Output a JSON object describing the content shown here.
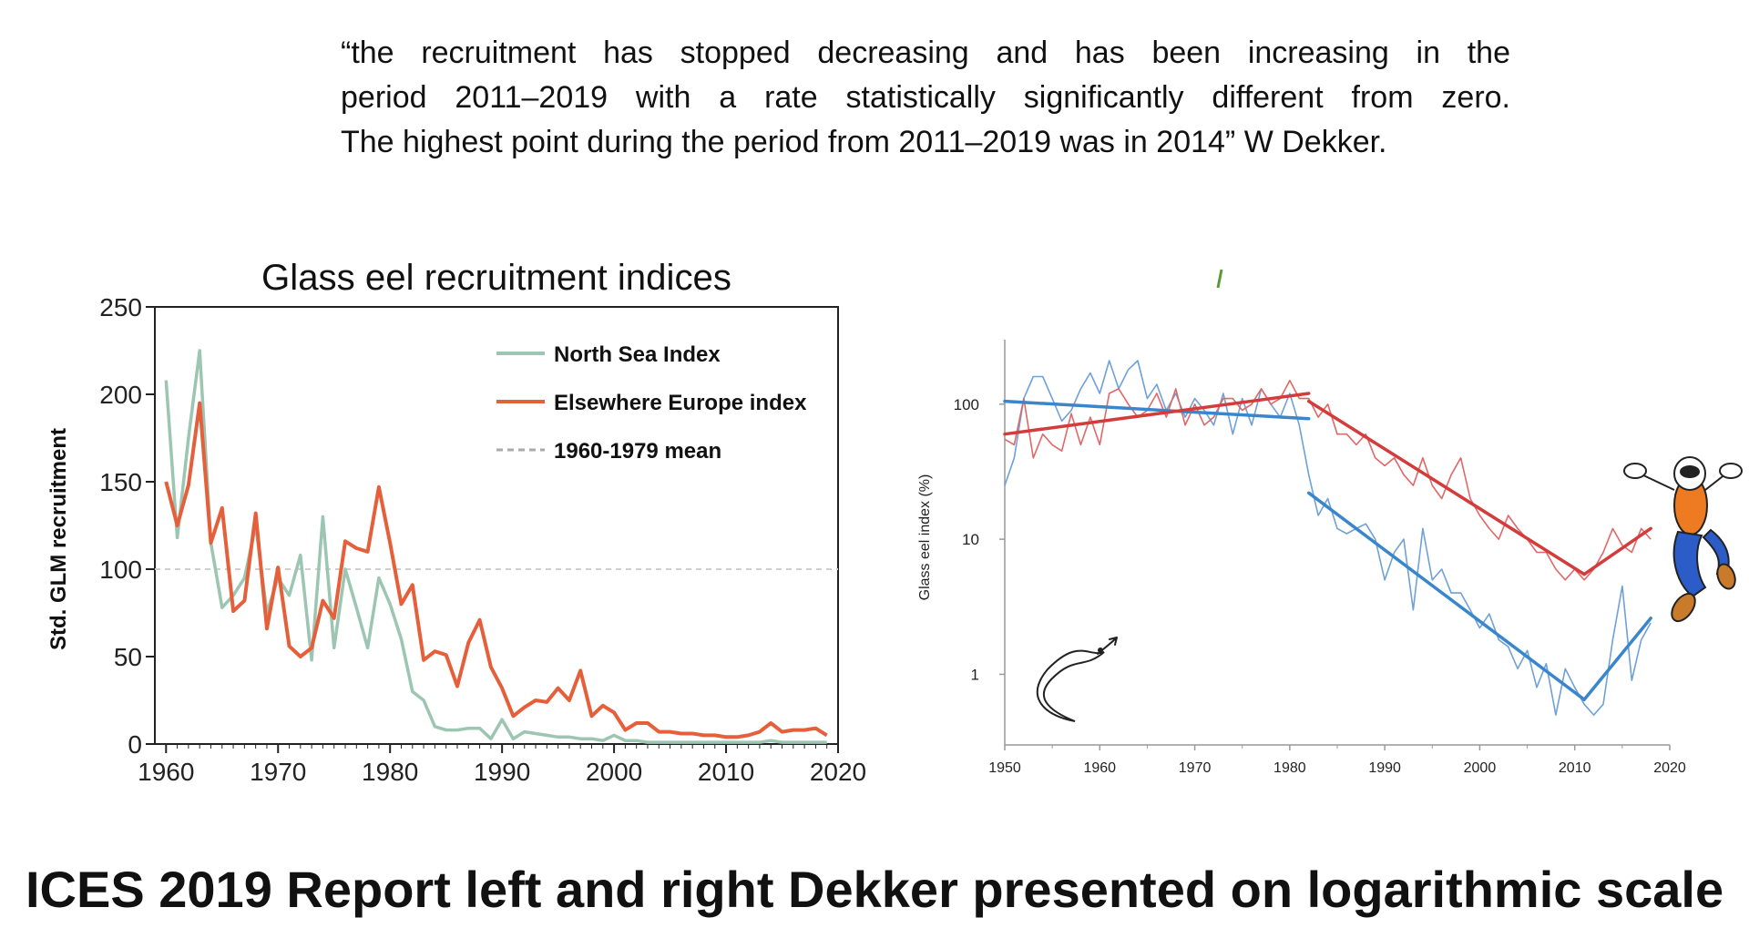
{
  "quote": {
    "lines": [
      "“the recruitment has stopped decreasing and has been increasing in the",
      "period 2011–2019 with a rate statistically significantly different from zero.",
      "The highest point during the period from 2011–2019 was in 2014” W Dekker."
    ]
  },
  "footer": {
    "text": "ICES 2019 Report left and right Dekker presented on logarithmic scale"
  },
  "chart_data": [
    {
      "type": "line",
      "title": "Glass eel recruitment indices",
      "ylabel": "Std. GLM recruitment",
      "xlabel": "",
      "xlim": [
        1959,
        2020
      ],
      "ylim": [
        0,
        250
      ],
      "x_ticks": [
        1960,
        1970,
        1980,
        1990,
        2000,
        2010,
        2020
      ],
      "y_ticks": [
        0,
        50,
        100,
        150,
        200,
        250
      ],
      "legend_position": "top-right",
      "mean_line": {
        "name": "1960-1979 mean",
        "value": 100,
        "color": "#bbbbbb"
      },
      "series": [
        {
          "name": "North Sea Index",
          "color": "#9cc5b2",
          "x": [
            1960,
            1961,
            1962,
            1963,
            1964,
            1965,
            1966,
            1967,
            1968,
            1969,
            1970,
            1971,
            1972,
            1973,
            1974,
            1975,
            1976,
            1977,
            1978,
            1979,
            1980,
            1981,
            1982,
            1983,
            1984,
            1985,
            1986,
            1987,
            1988,
            1989,
            1990,
            1991,
            1992,
            1993,
            1994,
            1995,
            1996,
            1997,
            1998,
            1999,
            2000,
            2001,
            2002,
            2003,
            2004,
            2005,
            2006,
            2007,
            2008,
            2009,
            2010,
            2011,
            2012,
            2013,
            2014,
            2015,
            2016,
            2017,
            2018,
            2019
          ],
          "values": [
            208,
            118,
            175,
            225,
            115,
            78,
            85,
            95,
            125,
            75,
            95,
            85,
            108,
            48,
            130,
            55,
            100,
            78,
            55,
            95,
            80,
            60,
            30,
            25,
            10,
            8,
            8,
            9,
            9,
            3,
            14,
            3,
            7,
            6,
            5,
            4,
            4,
            3,
            3,
            2,
            5,
            2,
            2,
            1,
            1,
            1,
            1,
            1,
            1,
            1,
            1,
            1,
            1,
            1,
            2,
            1,
            1,
            1,
            1,
            1
          ]
        },
        {
          "name": "Elsewhere Europe index",
          "color": "#e5603a",
          "x": [
            1960,
            1961,
            1962,
            1963,
            1964,
            1965,
            1966,
            1967,
            1968,
            1969,
            1970,
            1971,
            1972,
            1973,
            1974,
            1975,
            1976,
            1977,
            1978,
            1979,
            1980,
            1981,
            1982,
            1983,
            1984,
            1985,
            1986,
            1987,
            1988,
            1989,
            1990,
            1991,
            1992,
            1993,
            1994,
            1995,
            1996,
            1997,
            1998,
            1999,
            2000,
            2001,
            2002,
            2003,
            2004,
            2005,
            2006,
            2007,
            2008,
            2009,
            2010,
            2011,
            2012,
            2013,
            2014,
            2015,
            2016,
            2017,
            2018,
            2019
          ],
          "values": [
            150,
            125,
            148,
            195,
            115,
            135,
            76,
            82,
            132,
            66,
            101,
            56,
            50,
            55,
            82,
            72,
            116,
            112,
            110,
            147,
            115,
            80,
            91,
            48,
            53,
            51,
            33,
            58,
            71,
            44,
            32,
            16,
            21,
            25,
            24,
            32,
            25,
            42,
            16,
            22,
            18,
            8,
            12,
            12,
            7,
            7,
            6,
            6,
            5,
            5,
            4,
            4,
            5,
            7,
            12,
            7,
            8,
            8,
            9,
            5
          ]
        }
      ]
    },
    {
      "type": "line",
      "title": "",
      "ylabel": "Glass eel index (%)",
      "xlabel": "",
      "xlim": [
        1950,
        2020
      ],
      "y_scale": "log",
      "ylim": [
        0.3,
        300
      ],
      "x_ticks": [
        1950,
        1960,
        1970,
        1980,
        1990,
        2000,
        2010,
        2020
      ],
      "y_ticks": [
        1,
        10,
        100
      ],
      "series": [
        {
          "name": "",
          "color": "#6fa0d8",
          "x": [
            1950,
            1951,
            1952,
            1953,
            1954,
            1955,
            1956,
            1957,
            1958,
            1959,
            1960,
            1961,
            1962,
            1963,
            1964,
            1965,
            1966,
            1967,
            1968,
            1969,
            1970,
            1971,
            1972,
            1973,
            1974,
            1975,
            1976,
            1977,
            1978,
            1979,
            1980,
            1981,
            1982,
            1983,
            1984,
            1985,
            1986,
            1987,
            1988,
            1989,
            1990,
            1991,
            1992,
            1993,
            1994,
            1995,
            1996,
            1997,
            1998,
            1999,
            2000,
            2001,
            2002,
            2003,
            2004,
            2005,
            2006,
            2007,
            2008,
            2009,
            2010,
            2011,
            2012,
            2013,
            2014,
            2015,
            2016,
            2017,
            2018
          ],
          "values": [
            25,
            40,
            110,
            160,
            160,
            110,
            75,
            90,
            130,
            170,
            120,
            210,
            130,
            180,
            210,
            110,
            140,
            90,
            120,
            80,
            110,
            90,
            70,
            120,
            60,
            110,
            70,
            130,
            100,
            80,
            120,
            70,
            30,
            15,
            20,
            12,
            11,
            12,
            13,
            10,
            5,
            8,
            10,
            3,
            12,
            5,
            6,
            4,
            4,
            3,
            2.2,
            2.8,
            1.8,
            1.6,
            1.1,
            1.5,
            0.8,
            1.2,
            0.5,
            1.1,
            0.8,
            0.6,
            0.5,
            0.6,
            1.8,
            4.5,
            0.9,
            1.8,
            2.4
          ]
        },
        {
          "name": "",
          "color": "#e06767",
          "x": [
            1950,
            1951,
            1952,
            1953,
            1954,
            1955,
            1956,
            1957,
            1958,
            1959,
            1960,
            1961,
            1962,
            1963,
            1964,
            1965,
            1966,
            1967,
            1968,
            1969,
            1970,
            1971,
            1972,
            1973,
            1974,
            1975,
            1976,
            1977,
            1978,
            1979,
            1980,
            1981,
            1982,
            1983,
            1984,
            1985,
            1986,
            1987,
            1988,
            1989,
            1990,
            1991,
            1992,
            1993,
            1994,
            1995,
            1996,
            1997,
            1998,
            1999,
            2000,
            2001,
            2002,
            2003,
            2004,
            2005,
            2006,
            2007,
            2008,
            2009,
            2010,
            2011,
            2012,
            2013,
            2014,
            2015,
            2016,
            2017,
            2018
          ],
          "values": [
            55,
            50,
            110,
            40,
            60,
            50,
            45,
            85,
            50,
            80,
            50,
            120,
            130,
            100,
            80,
            90,
            120,
            80,
            130,
            70,
            100,
            70,
            80,
            110,
            110,
            90,
            100,
            130,
            100,
            110,
            150,
            110,
            110,
            80,
            100,
            60,
            60,
            50,
            60,
            40,
            35,
            40,
            30,
            25,
            40,
            25,
            20,
            30,
            40,
            20,
            15,
            12,
            10,
            15,
            12,
            10,
            8,
            8,
            6,
            5,
            6,
            5,
            6,
            8,
            12,
            9,
            8,
            12,
            10
          ]
        }
      ],
      "trend_lines": [
        {
          "color": "#3a86cc",
          "x": [
            1950,
            1982
          ],
          "values": [
            105,
            78
          ]
        },
        {
          "color": "#3a86cc",
          "x": [
            1982,
            2011
          ],
          "values": [
            22,
            0.65
          ]
        },
        {
          "color": "#3a86cc",
          "x": [
            2011,
            2018
          ],
          "values": [
            0.65,
            2.6
          ]
        },
        {
          "color": "#d43c3c",
          "x": [
            1950,
            1982
          ],
          "values": [
            60,
            120
          ]
        },
        {
          "color": "#d43c3c",
          "x": [
            1982,
            2011
          ],
          "values": [
            105,
            5.5
          ]
        },
        {
          "color": "#d43c3c",
          "x": [
            2011,
            2018
          ],
          "values": [
            5.5,
            12
          ]
        }
      ]
    }
  ]
}
